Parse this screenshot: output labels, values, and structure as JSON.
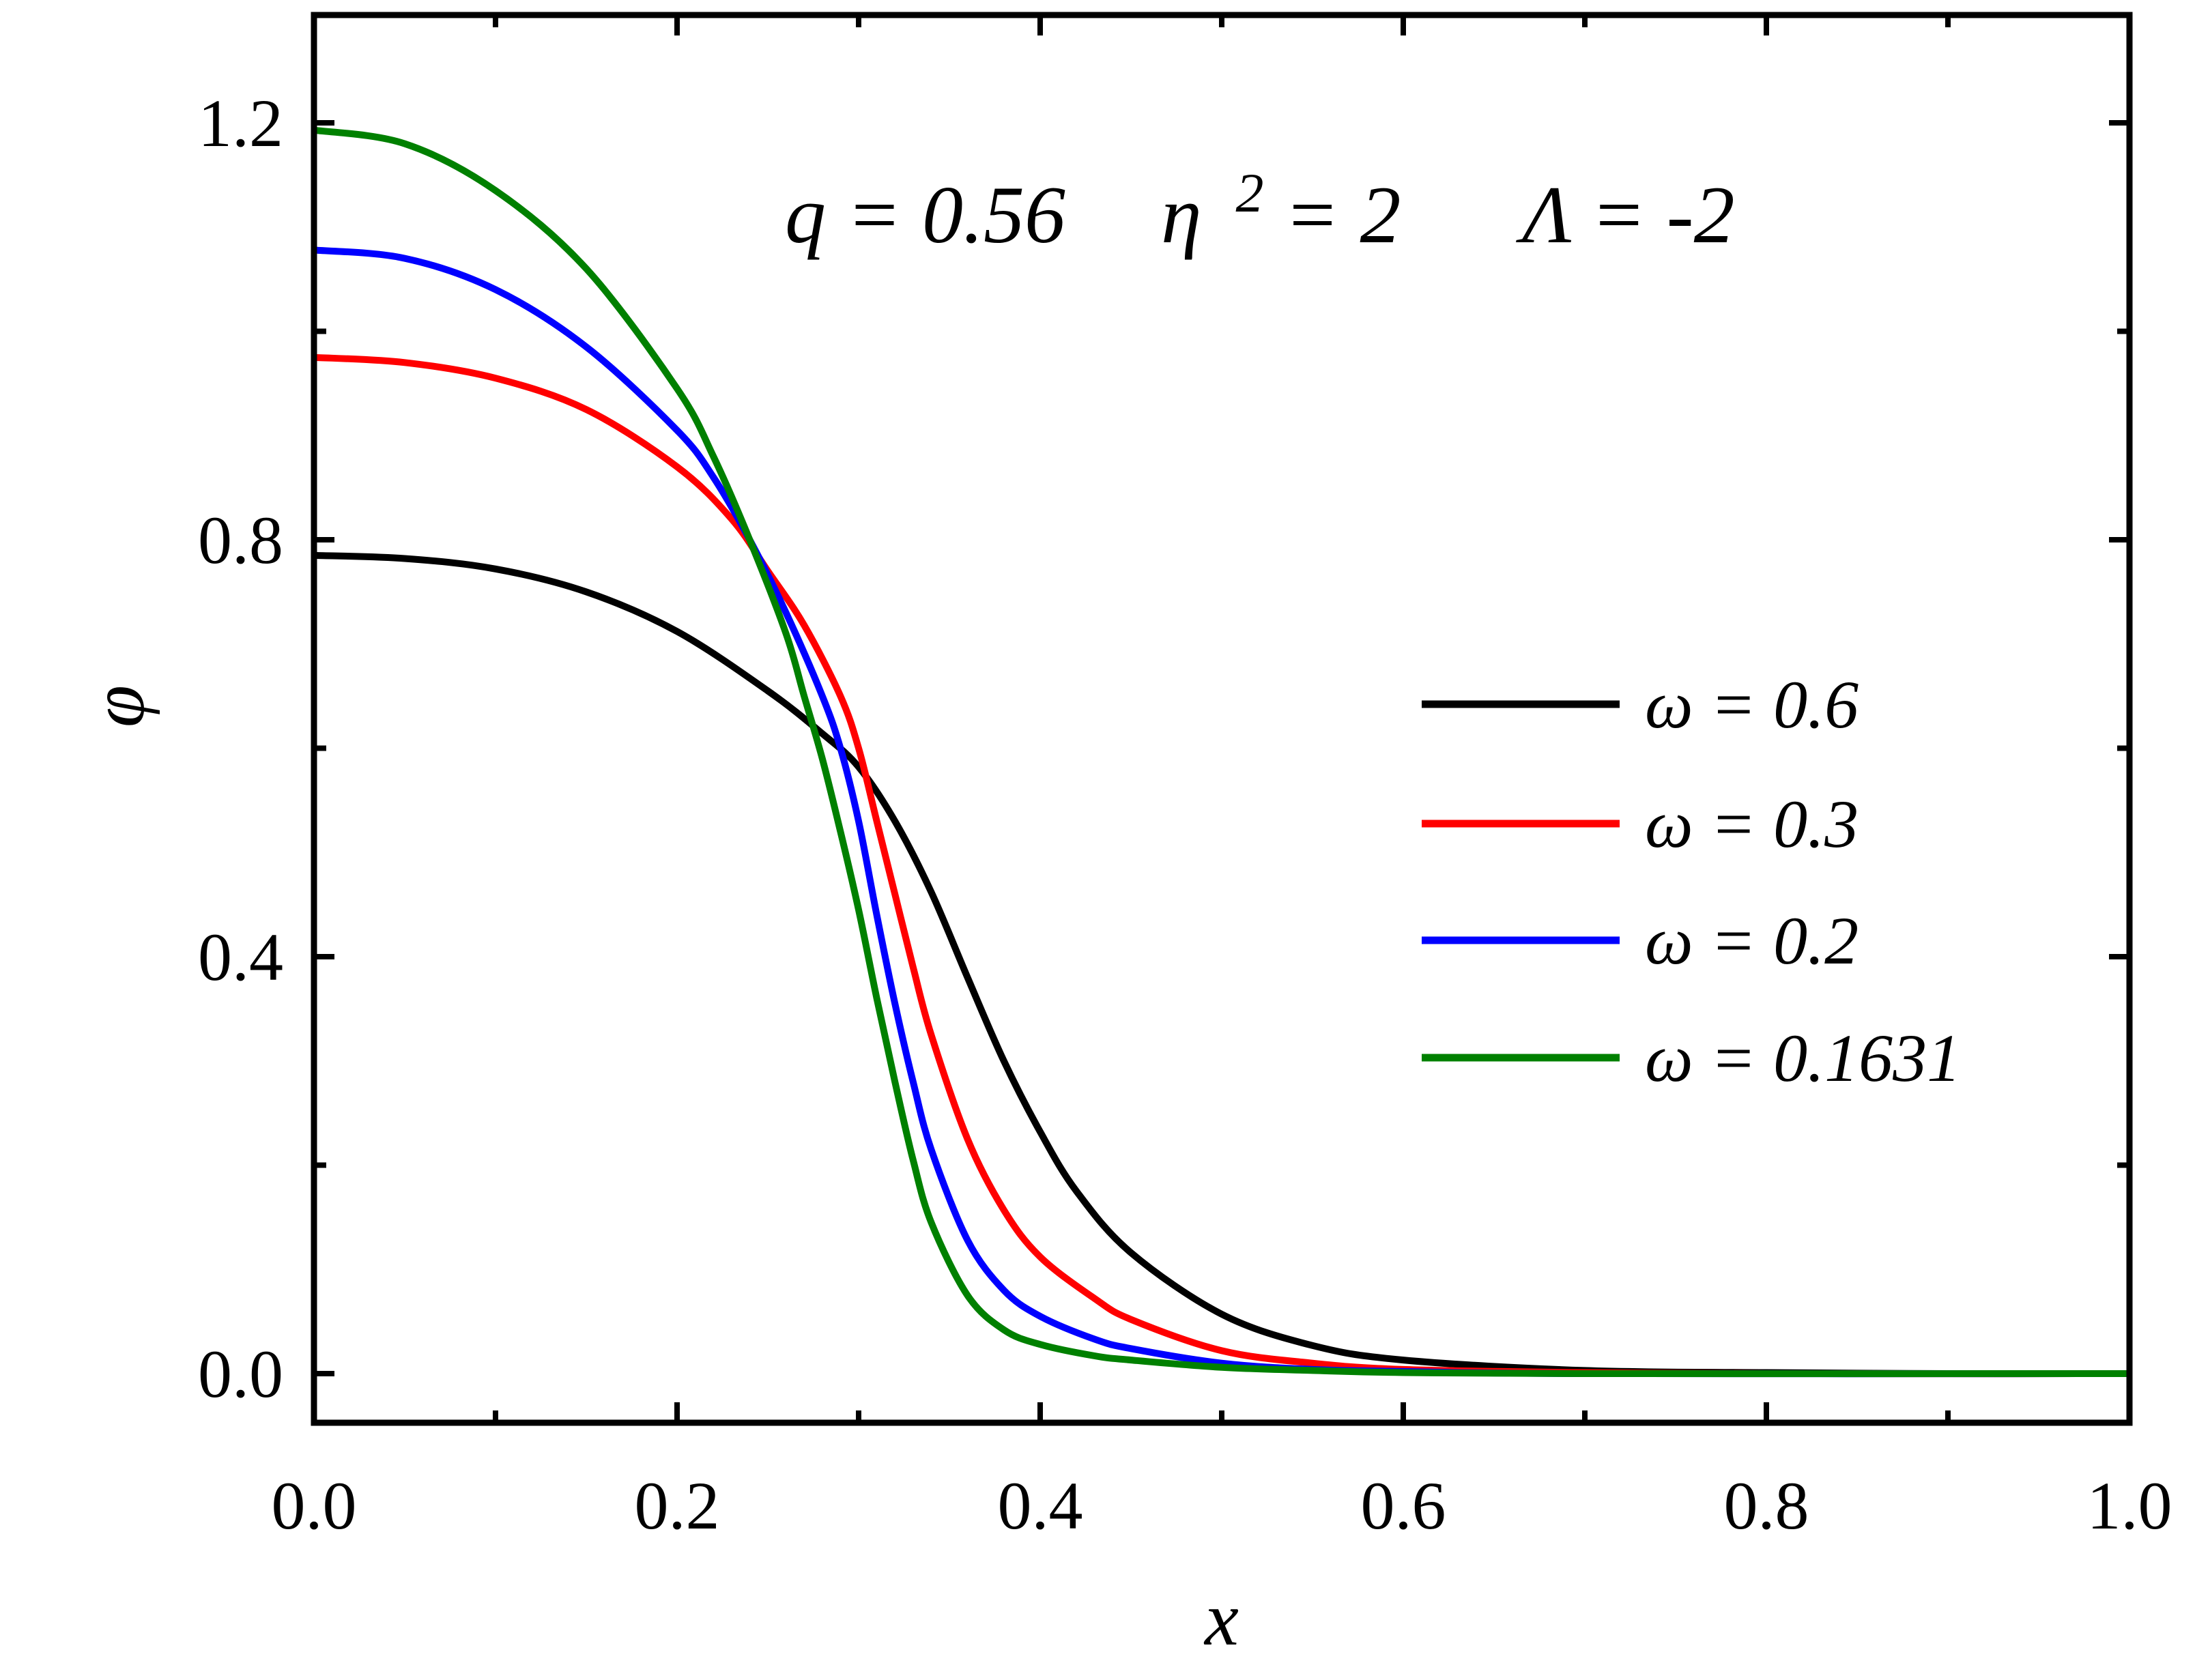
{
  "chart_data": {
    "type": "line",
    "xlabel": "x",
    "ylabel": "φ",
    "xlim": [
      0.0,
      1.0
    ],
    "ylim": [
      -0.05,
      1.3
    ],
    "xticks": [
      0.0,
      0.2,
      0.4,
      0.6,
      0.8,
      1.0
    ],
    "xtick_labels": [
      "0.0",
      "0.2",
      "0.4",
      "0.6",
      "0.8",
      "1.0"
    ],
    "yticks": [
      0.0,
      0.4,
      0.8,
      1.2
    ],
    "ytick_labels": [
      "0.0",
      "0.4",
      "0.8",
      "1.2"
    ],
    "minor_ticks": true,
    "grid": false,
    "legend_position": "right-middle",
    "annotation": {
      "parts": [
        "q = 0.56",
        "η",
        "2",
        " = 2",
        "Λ = -2"
      ]
    },
    "series": [
      {
        "name": "ω = 0.6",
        "color": "#000000",
        "x": [
          0,
          0.05,
          0.1,
          0.15,
          0.2,
          0.25,
          0.28,
          0.3,
          0.32,
          0.34,
          0.36,
          0.38,
          0.4,
          0.42,
          0.45,
          0.5,
          0.55,
          0.6,
          0.7,
          0.8,
          0.9,
          1.0
        ],
        "y": [
          0.785,
          0.782,
          0.772,
          0.75,
          0.712,
          0.655,
          0.614,
          0.582,
          0.53,
          0.462,
          0.38,
          0.3,
          0.232,
          0.175,
          0.116,
          0.057,
          0.027,
          0.013,
          0.003,
          0.001,
          0.0,
          0.0
        ]
      },
      {
        "name": "ω = 0.3",
        "color": "#ff0000",
        "x": [
          0,
          0.05,
          0.1,
          0.15,
          0.2,
          0.23,
          0.25,
          0.27,
          0.29,
          0.3,
          0.31,
          0.32,
          0.33,
          0.34,
          0.36,
          0.38,
          0.4,
          0.43,
          0.45,
          0.5,
          0.55,
          0.6,
          0.7,
          0.8,
          1.0
        ],
        "y": [
          0.975,
          0.97,
          0.955,
          0.925,
          0.87,
          0.82,
          0.77,
          0.718,
          0.65,
          0.6,
          0.53,
          0.46,
          0.39,
          0.325,
          0.225,
          0.157,
          0.112,
          0.072,
          0.052,
          0.022,
          0.01,
          0.004,
          0.001,
          0.0,
          0.0
        ]
      },
      {
        "name": "ω = 0.2",
        "color": "#0000ff",
        "x": [
          0,
          0.05,
          0.1,
          0.15,
          0.2,
          0.22,
          0.24,
          0.26,
          0.28,
          0.29,
          0.3,
          0.31,
          0.32,
          0.33,
          0.34,
          0.36,
          0.38,
          0.4,
          0.43,
          0.45,
          0.5,
          0.55,
          0.6,
          0.7,
          1.0
        ],
        "y": [
          1.078,
          1.07,
          1.04,
          0.985,
          0.905,
          0.86,
          0.8,
          0.73,
          0.65,
          0.6,
          0.53,
          0.44,
          0.355,
          0.28,
          0.215,
          0.128,
          0.08,
          0.055,
          0.033,
          0.024,
          0.01,
          0.004,
          0.002,
          0.0,
          0.0
        ]
      },
      {
        "name": "ω = 0.1631",
        "color": "#008000",
        "x": [
          0,
          0.05,
          0.1,
          0.15,
          0.2,
          0.22,
          0.24,
          0.26,
          0.27,
          0.28,
          0.29,
          0.3,
          0.31,
          0.32,
          0.33,
          0.34,
          0.36,
          0.38,
          0.4,
          0.43,
          0.45,
          0.5,
          0.55,
          0.6,
          0.7,
          1.0
        ],
        "y": [
          1.193,
          1.18,
          1.135,
          1.06,
          0.945,
          0.88,
          0.8,
          0.71,
          0.65,
          0.59,
          0.52,
          0.445,
          0.36,
          0.28,
          0.205,
          0.145,
          0.075,
          0.042,
          0.028,
          0.017,
          0.013,
          0.006,
          0.003,
          0.001,
          0.0,
          0.0
        ]
      }
    ]
  }
}
